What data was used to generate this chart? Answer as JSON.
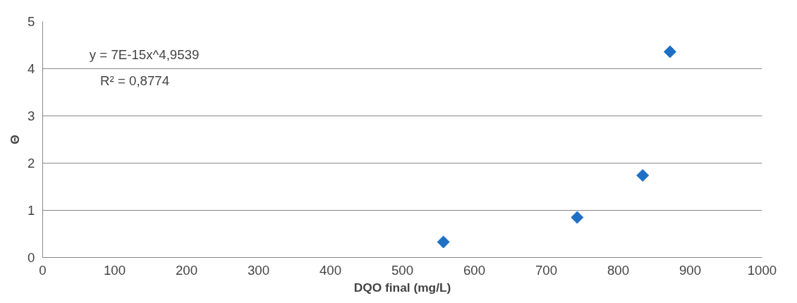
{
  "chart_data": {
    "type": "scatter",
    "xlabel": "DQO final (mg/L)",
    "ylabel": "Θ",
    "x": [
      557,
      743,
      834,
      872
    ],
    "series": [
      {
        "color": "#1f6fc5",
        "values": [
          0.33,
          0.85,
          1.74,
          4.36
        ]
      }
    ],
    "xlim": [
      0,
      1000
    ],
    "xticks": [
      0,
      100,
      200,
      300,
      400,
      500,
      600,
      700,
      800,
      900,
      1000
    ],
    "ylim": [
      0,
      5
    ],
    "yticks": [
      0,
      1,
      2,
      3,
      4,
      5
    ],
    "grid": "y",
    "marker": "diamond",
    "annotations": [
      "y = 7E-15x^4,9539",
      "R² = 0,8774"
    ]
  }
}
